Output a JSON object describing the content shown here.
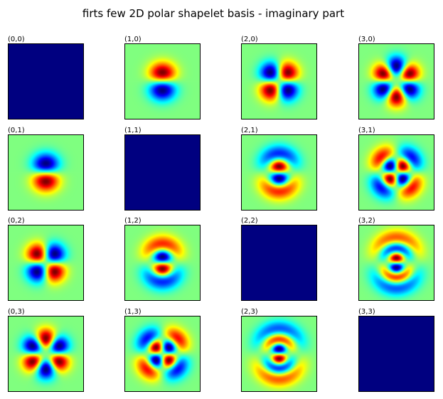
{
  "figure": {
    "title": "firts few 2D polar shapelet basis - imaginary part"
  },
  "colormap": "jet",
  "chart_data": {
    "type": "heatmap",
    "title": "firts few 2D polar shapelet basis - imaginary part",
    "rows": 4,
    "cols": 4,
    "panels": [
      {
        "label": "(0,0)",
        "n": 0,
        "m": 0
      },
      {
        "label": "(1,0)",
        "n": 1,
        "m": 0
      },
      {
        "label": "(2,0)",
        "n": 2,
        "m": 0
      },
      {
        "label": "(3,0)",
        "n": 3,
        "m": 0
      },
      {
        "label": "(0,1)",
        "n": 0,
        "m": 1
      },
      {
        "label": "(1,1)",
        "n": 1,
        "m": 1
      },
      {
        "label": "(2,1)",
        "n": 2,
        "m": 1
      },
      {
        "label": "(3,1)",
        "n": 3,
        "m": 1
      },
      {
        "label": "(0,2)",
        "n": 0,
        "m": 2
      },
      {
        "label": "(1,2)",
        "n": 1,
        "m": 2
      },
      {
        "label": "(2,2)",
        "n": 2,
        "m": 2
      },
      {
        "label": "(3,2)",
        "n": 3,
        "m": 2
      },
      {
        "label": "(0,3)",
        "n": 0,
        "m": 3
      },
      {
        "label": "(1,3)",
        "n": 1,
        "m": 3
      },
      {
        "label": "(2,3)",
        "n": 2,
        "m": 3
      },
      {
        "label": "(3,3)",
        "n": 3,
        "m": 3
      }
    ]
  }
}
